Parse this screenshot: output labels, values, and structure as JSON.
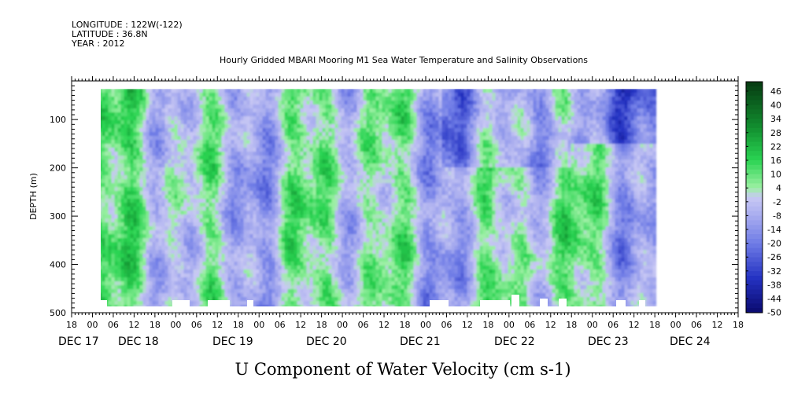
{
  "header": {
    "longitude": "LONGITUDE : 122W(-122)",
    "latitude": "LATITUDE : 36.8N",
    "year": "YEAR : 2012",
    "title": "Hourly Gridded MBARI Mooring M1 Sea Water Temperature and Salinity Observations"
  },
  "chart_data": {
    "type": "heatmap",
    "title": "Hourly Gridded MBARI Mooring M1 Sea Water Temperature and Salinity Observations",
    "xlabel": "U Component of Water Velocity (cm s-1)",
    "ylabel": "DEPTH (m)",
    "y_reversed": true,
    "ylim": [
      500,
      20
    ],
    "y_ticks": [
      100,
      200,
      300,
      400,
      500
    ],
    "x_hour_tick_labels": [
      "18",
      "00",
      "06",
      "12",
      "18",
      "00",
      "06",
      "12",
      "18",
      "00",
      "06",
      "12",
      "18",
      "00",
      "06",
      "12",
      "18",
      "00",
      "06",
      "12",
      "18",
      "00",
      "06",
      "12",
      "18",
      "00",
      "06",
      "12",
      "18",
      "00",
      "06",
      "12",
      "18"
    ],
    "x_day_labels": [
      "DEC 17",
      "DEC 18",
      "DEC 19",
      "DEC 20",
      "DEC 21",
      "DEC 22",
      "DEC 23",
      "DEC 24"
    ],
    "colorbar": {
      "labels": [
        "46",
        "40",
        "34",
        "28",
        "22",
        "16",
        "10",
        "4",
        "-2",
        "-8",
        "-14",
        "-20",
        "-26",
        "-32",
        "-38",
        "-44",
        "-50"
      ],
      "range": [
        -50,
        50
      ],
      "colors": {
        "max": "#063a12",
        "strong_positive": "#128f2f",
        "positive": "#2ad452",
        "weak_positive": "#9cf0a3",
        "near_zero": "#c8c8f4",
        "weak_negative": "#a8acef",
        "negative": "#6f7ce6",
        "strong_negative": "#2432c2",
        "min": "#0a0a6e"
      }
    },
    "data_extent": {
      "start": "DEC 18 00",
      "end": "DEC 24 18",
      "depth_min": 20,
      "depth_max": 485
    },
    "grid": false,
    "legend": "colorbar-right"
  }
}
